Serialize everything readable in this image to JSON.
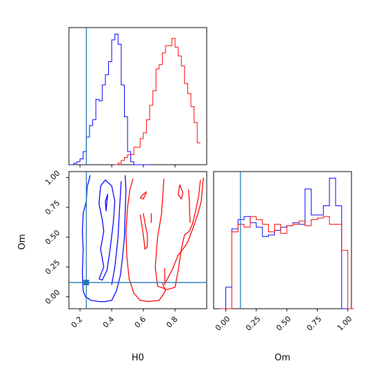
{
  "chart_data": {
    "type": "corner",
    "parameters": [
      "H0",
      "Om"
    ],
    "colors": {
      "run_a": "#0000ff",
      "run_b": "#ff0000",
      "truth": "#1f77b4"
    },
    "truth": {
      "H0": 0.24,
      "Om": 0.12
    },
    "truth_point": {
      "H0": 0.24,
      "Om": 0.12
    },
    "panels": [
      {
        "id": "hist_H0",
        "type": "histogram",
        "xlim": [
          0.13,
          1.0
        ],
        "bin_width": 0.02,
        "series": [
          {
            "color": "#0000ff",
            "bin_start": 0.14,
            "counts": [
              0,
              1,
              2,
              4,
              9,
              19,
              27,
              31,
              45,
              44,
              55,
              62,
              71,
              86,
              90,
              83,
              55,
              33,
              9,
              2,
              0,
              0,
              0,
              0,
              0
            ]
          },
          {
            "color": "#ff0000",
            "bin_start": 0.42,
            "counts": [
              0,
              1,
              3,
              5,
              7,
              7,
              12,
              12,
              18,
              22,
              31,
              41,
              51,
              66,
              69,
              77,
              82,
              82,
              87,
              81,
              75,
              68,
              56,
              49,
              40,
              29,
              15
            ]
          }
        ]
      },
      {
        "id": "contour_H0_Om",
        "type": "contour",
        "xlim": [
          0.13,
          1.0
        ],
        "ylim": [
          -0.1,
          1.05
        ],
        "xlabel": "H0",
        "ylabel": "Om",
        "xticks": [
          0.2,
          0.4,
          0.6,
          0.8
        ],
        "xtick_labels": [
          "0.2",
          "0.4",
          "0.6",
          "0.8"
        ],
        "yticks": [
          0.0,
          0.25,
          0.5,
          0.75,
          1.0
        ],
        "ytick_labels": [
          "0.00",
          "0.25",
          "0.50",
          "0.75",
          "1.00"
        ],
        "contours": [
          {
            "color": "#0000ff",
            "points": [
              [
                0.265,
                1.02
              ],
              [
                0.245,
                0.92
              ],
              [
                0.24,
                0.8
              ],
              [
                0.22,
                0.7
              ],
              [
                0.215,
                0.55
              ],
              [
                0.22,
                0.4
              ],
              [
                0.215,
                0.2
              ],
              [
                0.22,
                0.05
              ],
              [
                0.235,
                0.0
              ],
              [
                0.27,
                -0.03
              ],
              [
                0.32,
                -0.04
              ],
              [
                0.36,
                -0.04
              ],
              [
                0.4,
                -0.03
              ],
              [
                0.43,
                0.05
              ],
              [
                0.455,
                0.18
              ],
              [
                0.47,
                0.35
              ],
              [
                0.48,
                0.5
              ],
              [
                0.485,
                0.7
              ],
              [
                0.49,
                0.9
              ],
              [
                0.485,
                1.02
              ]
            ]
          },
          {
            "color": "#0000ff",
            "points": [
              [
                0.32,
                0.15
              ],
              [
                0.35,
                0.25
              ],
              [
                0.33,
                0.4
              ],
              [
                0.35,
                0.55
              ],
              [
                0.34,
                0.65
              ],
              [
                0.32,
                0.78
              ],
              [
                0.33,
                0.93
              ],
              [
                0.36,
                0.98
              ],
              [
                0.4,
                0.93
              ],
              [
                0.42,
                0.8
              ],
              [
                0.41,
                0.62
              ],
              [
                0.39,
                0.4
              ],
              [
                0.37,
                0.22
              ],
              [
                0.34,
                0.14
              ],
              [
                0.32,
                0.15
              ]
            ]
          },
          {
            "color": "#0000ff",
            "points": [
              [
                0.4,
                0.1
              ],
              [
                0.42,
                0.25
              ],
              [
                0.44,
                0.5
              ],
              [
                0.45,
                0.75
              ],
              [
                0.46,
                0.97
              ]
            ]
          },
          {
            "color": "#0000ff",
            "points": [
              [
                0.36,
                0.8
              ],
              [
                0.375,
                0.86
              ],
              [
                0.37,
                0.8
              ],
              [
                0.365,
                0.72
              ],
              [
                0.36,
                0.8
              ]
            ]
          },
          {
            "color": "#ff0000",
            "points": [
              [
                0.535,
                0.99
              ],
              [
                0.515,
                0.9
              ],
              [
                0.5,
                0.75
              ],
              [
                0.49,
                0.55
              ],
              [
                0.495,
                0.35
              ],
              [
                0.51,
                0.15
              ],
              [
                0.54,
                0.03
              ],
              [
                0.58,
                -0.03
              ],
              [
                0.63,
                -0.04
              ],
              [
                0.7,
                -0.03
              ],
              [
                0.74,
                0.05
              ],
              [
                0.72,
                0.12
              ]
            ]
          },
          {
            "color": "#ff0000",
            "points": [
              [
                0.74,
                0.12
              ],
              [
                0.78,
                0.22
              ],
              [
                0.82,
                0.35
              ],
              [
                0.85,
                0.4
              ],
              [
                0.88,
                0.46
              ],
              [
                0.92,
                0.6
              ],
              [
                0.945,
                0.7
              ],
              [
                0.965,
                0.8
              ],
              [
                0.975,
                0.95
              ],
              [
                0.98,
                1.0
              ]
            ]
          },
          {
            "color": "#ff0000",
            "points": [
              [
                0.73,
                0.99
              ],
              [
                0.715,
                0.7
              ],
              [
                0.69,
                0.5
              ],
              [
                0.675,
                0.25
              ],
              [
                0.69,
                0.09
              ],
              [
                0.75,
                0.06
              ],
              [
                0.8,
                0.08
              ],
              [
                0.82,
                0.22
              ],
              [
                0.84,
                0.4
              ],
              [
                0.86,
                0.52
              ],
              [
                0.89,
                0.55
              ],
              [
                0.91,
                0.61
              ],
              [
                0.93,
                0.72
              ],
              [
                0.95,
                0.85
              ],
              [
                0.96,
                0.98
              ]
            ]
          },
          {
            "color": "#ff0000",
            "points": [
              [
                0.58,
                0.69
              ],
              [
                0.59,
                0.61
              ],
              [
                0.6,
                0.52
              ],
              [
                0.61,
                0.4
              ],
              [
                0.625,
                0.42
              ],
              [
                0.625,
                0.52
              ],
              [
                0.61,
                0.62
              ],
              [
                0.6,
                0.7
              ]
            ]
          },
          {
            "color": "#ff0000",
            "points": [
              [
                0.58,
                0.83
              ],
              [
                0.6,
                0.86
              ],
              [
                0.62,
                0.88
              ],
              [
                0.6,
                0.82
              ],
              [
                0.58,
                0.83
              ]
            ]
          },
          {
            "color": "#ff0000",
            "points": [
              [
                0.65,
                0.7
              ],
              [
                0.65,
                0.62
              ]
            ]
          },
          {
            "color": "#ff0000",
            "points": [
              [
                0.735,
                0.24
              ],
              [
                0.735,
                0.1
              ]
            ]
          },
          {
            "color": "#ff0000",
            "points": [
              [
                0.83,
                0.94
              ],
              [
                0.85,
                0.87
              ],
              [
                0.84,
                0.82
              ],
              [
                0.82,
                0.86
              ],
              [
                0.83,
                0.94
              ]
            ]
          },
          {
            "color": "#ff0000",
            "points": [
              [
                0.885,
                0.9
              ],
              [
                0.89,
                0.8
              ],
              [
                0.895,
                0.62
              ]
            ]
          }
        ]
      },
      {
        "id": "hist_Om",
        "type": "histogram",
        "xlim": [
          -0.1,
          1.03
        ],
        "xlabel": "Om",
        "xticks": [
          0.0,
          0.25,
          0.5,
          0.75,
          1.0
        ],
        "xtick_labels": [
          "0.00",
          "0.25",
          "0.50",
          "0.75",
          "1.00"
        ],
        "bin_width": 0.05,
        "series": [
          {
            "color": "#0000ff",
            "bin_start": -0.05,
            "counts": [
              0,
              14,
              52,
              58,
              60,
              56,
              53,
              47,
              48,
              51,
              53,
              54,
              56,
              55,
              78,
              61,
              61,
              67,
              85,
              67,
              0,
              0
            ]
          },
          {
            "color": "#ff0000",
            "bin_start": -0.05,
            "counts": [
              0,
              0,
              50,
              55,
              53,
              60,
              58,
              55,
              50,
              55,
              49,
              54,
              55,
              57,
              54,
              58,
              59,
              60,
              55,
              55,
              38,
              0
            ]
          }
        ]
      }
    ]
  }
}
